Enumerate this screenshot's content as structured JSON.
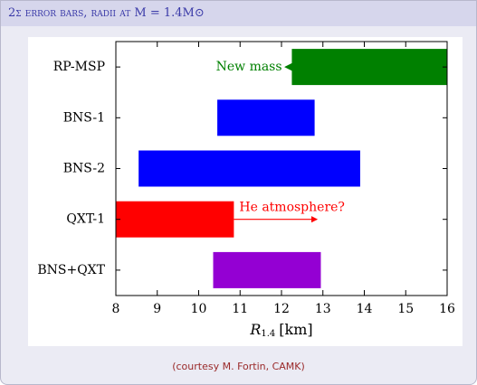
{
  "header": {
    "title": "2σ error bars, radii at M = 1.4M⊙"
  },
  "chart_data": {
    "type": "range-bar",
    "categories": [
      "RP-MSP",
      "BNS-1",
      "BNS-2",
      "QXT-1",
      "BNS+QXT"
    ],
    "values": [
      [
        12.25,
        16
      ],
      [
        10.45,
        12.8
      ],
      [
        8.55,
        13.9
      ],
      [
        8,
        10.85
      ],
      [
        10.35,
        12.95
      ]
    ],
    "colors": [
      "#008000",
      "#0000ff",
      "#0000ff",
      "#ff0000",
      "#9400d3"
    ],
    "xlim": [
      8,
      16
    ],
    "xticks": [
      8,
      9,
      10,
      11,
      12,
      13,
      14,
      15,
      16
    ],
    "xlabel": {
      "symbol": "R",
      "subscript": "1.4",
      "unit": "[km]"
    },
    "annotations": [
      {
        "text": "New mass",
        "color": "#008000",
        "bar": 0,
        "arrow_from": 12.25,
        "arrow_to": 12.1
      },
      {
        "text": "He atmosphere?",
        "color": "#ff0000",
        "bar": 3,
        "arrow_from": 10.85,
        "arrow_to": 12.85
      }
    ]
  },
  "caption": "(courtesy M. Fortin, CAMK)"
}
